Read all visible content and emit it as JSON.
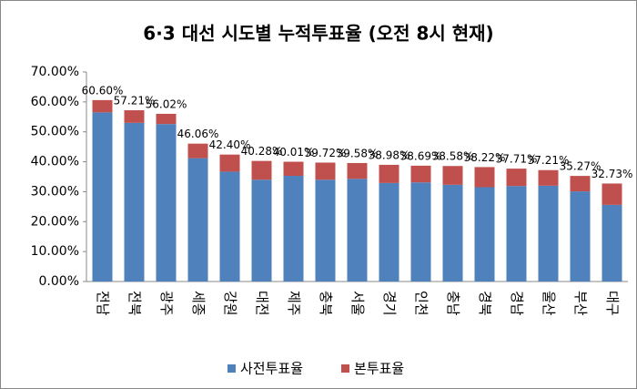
{
  "chart_data": {
    "type": "stacked_bar",
    "title": "6·3 대선 시도별 누적투표율 (오전 8시 현재)",
    "categories": [
      "전남",
      "전북",
      "광주",
      "세종",
      "강원",
      "대전",
      "제주",
      "충북",
      "서울",
      "경기",
      "인천",
      "충남",
      "경북",
      "경남",
      "울산",
      "부산",
      "대구"
    ],
    "series": [
      {
        "name": "사전투표율",
        "color": "#4f81bd",
        "values": [
          56.5,
          53.0,
          52.6,
          41.2,
          36.7,
          34.0,
          35.3,
          34.0,
          34.3,
          32.9,
          33.1,
          32.3,
          31.5,
          31.9,
          32.0,
          30.1,
          25.6
        ]
      },
      {
        "name": "본투표율",
        "color": "#c0504d",
        "values": [
          4.1,
          4.21,
          3.42,
          4.86,
          5.7,
          6.28,
          4.71,
          5.72,
          5.28,
          6.08,
          5.59,
          6.28,
          6.72,
          5.81,
          5.21,
          5.17,
          7.13
        ]
      }
    ],
    "totals": [
      60.6,
      57.21,
      56.02,
      46.06,
      42.4,
      40.28,
      40.01,
      39.72,
      39.58,
      38.98,
      38.69,
      38.58,
      38.22,
      37.71,
      37.21,
      35.27,
      32.73
    ],
    "total_labels": [
      "60.60%",
      "57.21%",
      "56.02%",
      "46.06%",
      "42.40%",
      "40.28%",
      "40.01%",
      "39.72%",
      "39.58%",
      "38.98%",
      "38.69%",
      "38.58%",
      "38.22%",
      "37.71%",
      "37.21%",
      "35.27%",
      "32.73%"
    ],
    "ylim": [
      0,
      70
    ],
    "yticks": [
      {
        "value": 0,
        "label": "0.00%"
      },
      {
        "value": 10,
        "label": "10.00%"
      },
      {
        "value": 20,
        "label": "20.00%"
      },
      {
        "value": 30,
        "label": "30.00%"
      },
      {
        "value": 40,
        "label": "40.00%"
      },
      {
        "value": 50,
        "label": "50.00%"
      },
      {
        "value": 60,
        "label": "60.00%"
      },
      {
        "value": 70,
        "label": "70.00%"
      }
    ],
    "grid": false,
    "legend": "bottom"
  }
}
